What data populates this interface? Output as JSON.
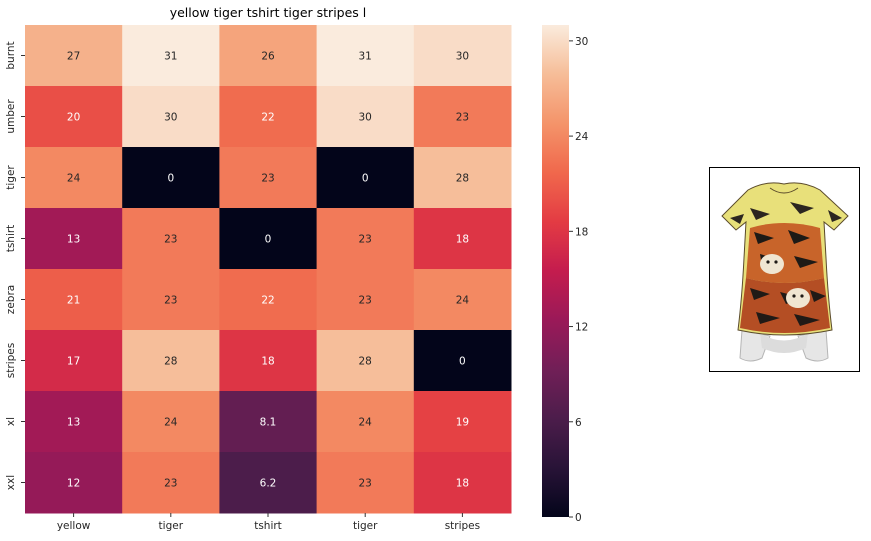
{
  "chart_data": {
    "type": "heatmap",
    "title": "yellow tiger tshirt tiger stripes  l",
    "x_categories": [
      "yellow",
      "tiger",
      "tshirt",
      "tiger",
      "stripes"
    ],
    "y_categories": [
      "burnt",
      "umber",
      "tiger",
      "tshirt",
      "zebra",
      "stripes",
      "xl",
      "xxl"
    ],
    "values": [
      [
        27,
        31,
        26,
        31,
        30
      ],
      [
        20,
        30,
        22,
        30,
        23
      ],
      [
        24,
        0,
        23,
        0,
        28
      ],
      [
        13,
        23,
        0,
        23,
        18
      ],
      [
        21,
        23,
        22,
        23,
        24
      ],
      [
        17,
        28,
        18,
        28,
        0
      ],
      [
        13,
        24,
        8.1,
        24,
        19
      ],
      [
        12,
        23,
        6.2,
        23,
        18
      ]
    ],
    "annotations": [
      [
        "27",
        "31",
        "26",
        "31",
        "30"
      ],
      [
        "20",
        "30",
        "22",
        "30",
        "23"
      ],
      [
        "24",
        "0",
        "23",
        "0",
        "28"
      ],
      [
        "13",
        "23",
        "0",
        "23",
        "18"
      ],
      [
        "21",
        "23",
        "22",
        "23",
        "24"
      ],
      [
        "17",
        "28",
        "18",
        "28",
        "0"
      ],
      [
        "13",
        "24",
        "8.1",
        "24",
        "19"
      ],
      [
        "12",
        "23",
        "6.2",
        "23",
        "18"
      ]
    ],
    "colorbar": {
      "min": 0,
      "max": 31,
      "ticks": [
        0,
        6,
        12,
        18,
        24,
        30
      ],
      "colormap": "rocket"
    },
    "grid": false
  },
  "product_image": {
    "icon": "tiger-print-tshirt-image"
  }
}
